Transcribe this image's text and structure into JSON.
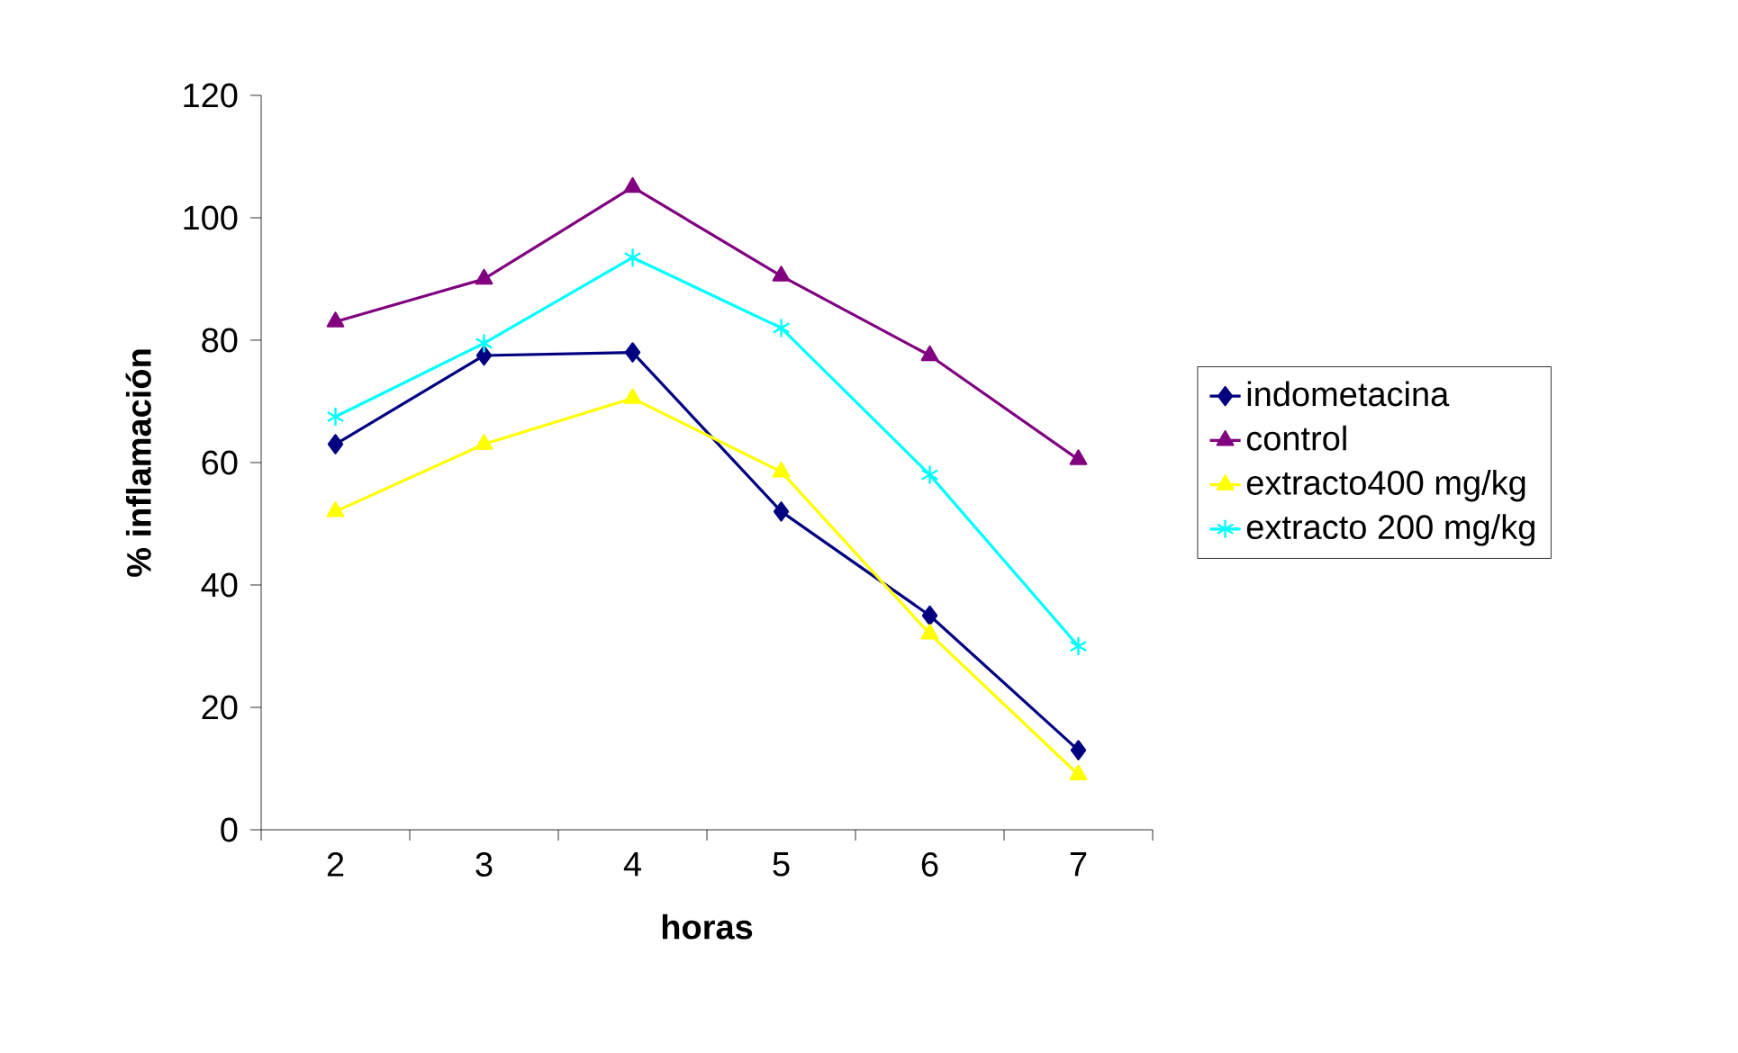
{
  "chart_data": {
    "type": "line",
    "xlabel": "horas",
    "ylabel": "% inflamación",
    "categories": [
      "2",
      "3",
      "4",
      "5",
      "6",
      "7"
    ],
    "series": [
      {
        "name": "indometacina",
        "color": "#000080",
        "marker": "diamond",
        "values": [
          63,
          77.5,
          78,
          52,
          35,
          13
        ]
      },
      {
        "name": "control",
        "color": "#800080",
        "marker": "triangle",
        "values": [
          83,
          90,
          105,
          90.5,
          77.5,
          60.5
        ]
      },
      {
        "name": "extracto400 mg/kg",
        "color": "#ffff00",
        "marker": "triangle",
        "values": [
          52,
          63,
          70.5,
          58.5,
          32,
          9
        ]
      },
      {
        "name": "extracto 200 mg/kg",
        "color": "#00ffff",
        "marker": "cross",
        "values": [
          67.5,
          79.5,
          93.5,
          82,
          58,
          30
        ]
      }
    ],
    "ylim": [
      0,
      120
    ],
    "yticks": [
      0,
      20,
      40,
      60,
      80,
      100,
      120
    ],
    "grid": false,
    "legend": "right",
    "line_style": "solid"
  }
}
